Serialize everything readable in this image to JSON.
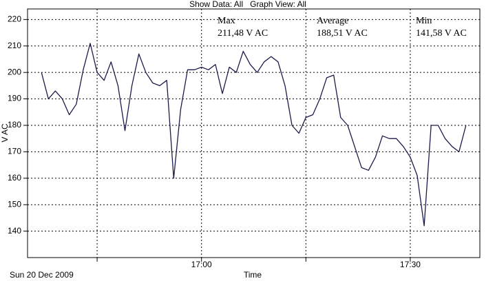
{
  "chart_data": {
    "type": "line",
    "title": "Show Data: All   Graph View: All",
    "x_label": "Time",
    "y_label": "V AC",
    "date_label": "Sun 20 Dec 2009",
    "stats": [
      {
        "label": "Max",
        "value": "211,48 V AC"
      },
      {
        "label": "Average",
        "value": "188,51 V AC"
      },
      {
        "label": "Min",
        "value": "141,58 V AC"
      }
    ],
    "x": [
      "16:37",
      "16:38",
      "16:39",
      "16:40",
      "16:41",
      "16:42",
      "16:43",
      "16:44",
      "16:45",
      "16:46",
      "16:47",
      "16:48",
      "16:49",
      "16:50",
      "16:51",
      "16:52",
      "16:53",
      "16:54",
      "16:55",
      "16:56",
      "16:57",
      "16:58",
      "16:59",
      "17:00",
      "17:01",
      "17:02",
      "17:03",
      "17:04",
      "17:05",
      "17:06",
      "17:07",
      "17:08",
      "17:09",
      "17:10",
      "17:11",
      "17:12",
      "17:13",
      "17:14",
      "17:15",
      "17:16",
      "17:17",
      "17:18",
      "17:19",
      "17:20",
      "17:21",
      "17:22",
      "17:23",
      "17:24",
      "17:25",
      "17:26",
      "17:27",
      "17:28",
      "17:29",
      "17:30",
      "17:31",
      "17:32",
      "17:33",
      "17:34",
      "17:35",
      "17:36",
      "17:37",
      "17:38"
    ],
    "series": [
      {
        "name": "V AC",
        "color": "#1a1a4a",
        "values": [
          200,
          190,
          193,
          190,
          184,
          188,
          201,
          211,
          200,
          197,
          204,
          195,
          178,
          195,
          207,
          200,
          196,
          195,
          197,
          160,
          186,
          201,
          201,
          202,
          201,
          203,
          192,
          202,
          200,
          208,
          203,
          200,
          204,
          206,
          204,
          195,
          180,
          177,
          183,
          184,
          190,
          198,
          199,
          183,
          180,
          172,
          164,
          163,
          168,
          176,
          175,
          175,
          172,
          168,
          161,
          142,
          180,
          180,
          175,
          172,
          170,
          180
        ]
      }
    ],
    "xlim": [
      "16:35",
      "17:40"
    ],
    "xticks": [
      "17:00",
      "17:30"
    ],
    "xminor_ticks": [
      "16:45",
      "17:15"
    ],
    "ylim": [
      130,
      224
    ],
    "yticks": [
      140,
      150,
      160,
      170,
      180,
      190,
      200,
      210,
      220
    ],
    "grid": true
  }
}
